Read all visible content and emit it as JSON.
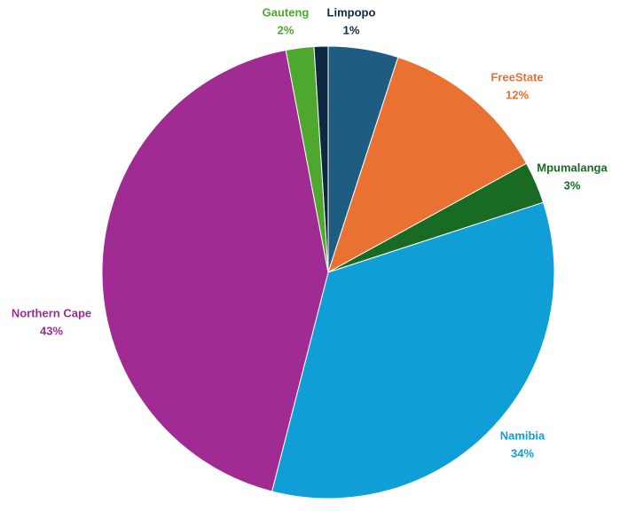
{
  "chart_data": {
    "type": "pie",
    "categories": [
      null,
      "FreeState",
      "Mpumalanga",
      "Namibia",
      "Northern Cape",
      "Gauteng",
      "Limpopo"
    ],
    "values": [
      5,
      12,
      3,
      34,
      43,
      2,
      1
    ],
    "value_labels": [
      null,
      "12%",
      "3%",
      "34%",
      "43%",
      "2%",
      "1%"
    ],
    "colors": [
      "#1f5c82",
      "#e97132",
      "#196b24",
      "#0f9ed5",
      "#a02b93",
      "#4ea72e",
      "#0e2841"
    ]
  }
}
